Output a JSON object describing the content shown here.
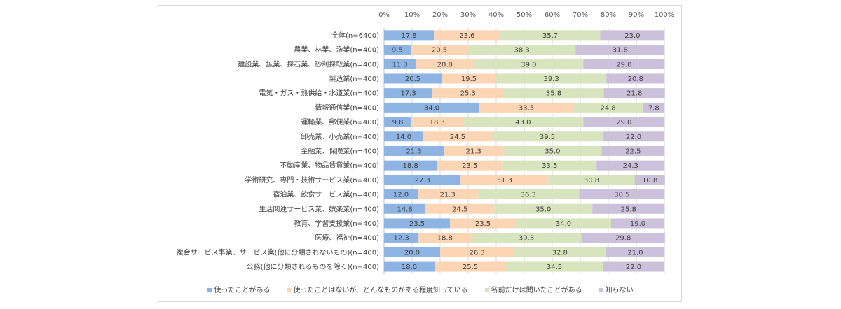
{
  "chart_data": {
    "type": "bar",
    "orientation": "horizontal",
    "stacked": "percent",
    "title": "",
    "xlabel": "",
    "ylabel": "",
    "xlim": [
      0,
      100
    ],
    "x_ticks": [
      "0%",
      "10%",
      "20%",
      "30%",
      "40%",
      "50%",
      "60%",
      "70%",
      "80%",
      "90%",
      "100%"
    ],
    "grid": true,
    "legend_position": "bottom",
    "categories": [
      "全体(n=6400)",
      "農業、林業、漁業(n=400)",
      "建設業、鉱業、採石業、砂利採取業(n=400)",
      "製造業(n=400)",
      "電気・ガス・熱供給・水道業(n=400)",
      "情報通信業(n=400)",
      "運輸業、郵便業(n=400)",
      "卸売業、小売業(n=400)",
      "金融業、保険業(n=400)",
      "不動産業、物品賃貸業(n=400)",
      "学術研究、専門・技術サービス業(n=400)",
      "宿泊業、飲食サービス業(n=400)",
      "生活関連サービス業、娯楽業(n=400)",
      "教育、学習支援業(n=400)",
      "医療、福祉(n=400)",
      "複合サービス事業、サービス業(他に分類されないもの)(n=400)",
      "公務(他に分類されるものを除く)(n=400)"
    ],
    "series": [
      {
        "name": "使ったことがある",
        "color": "#8eb4e3",
        "values": [
          17.8,
          9.5,
          11.3,
          20.5,
          17.3,
          34.0,
          9.8,
          14.0,
          21.3,
          18.8,
          27.3,
          12.0,
          14.8,
          23.5,
          12.3,
          20.0,
          18.0
        ]
      },
      {
        "name": "使ったことはないが、どんなものかある程度知っている",
        "color": "#fcd5b5",
        "values": [
          23.6,
          20.5,
          20.8,
          19.5,
          25.3,
          33.5,
          18.3,
          24.5,
          21.3,
          23.5,
          31.3,
          21.3,
          24.5,
          23.5,
          18.8,
          26.3,
          25.5
        ]
      },
      {
        "name": "名前だけは聞いたことがある",
        "color": "#d7e4bd",
        "values": [
          35.7,
          38.3,
          39.0,
          39.3,
          35.8,
          24.8,
          43.0,
          39.5,
          35.0,
          33.5,
          30.8,
          36.3,
          35.0,
          34.0,
          39.3,
          32.8,
          34.5
        ]
      },
      {
        "name": "知らない",
        "color": "#ccc1da",
        "values": [
          23.0,
          31.8,
          29.0,
          20.8,
          21.8,
          7.8,
          29.0,
          22.0,
          22.5,
          24.3,
          10.8,
          30.5,
          25.8,
          19.0,
          29.8,
          21.0,
          22.0
        ]
      }
    ]
  }
}
